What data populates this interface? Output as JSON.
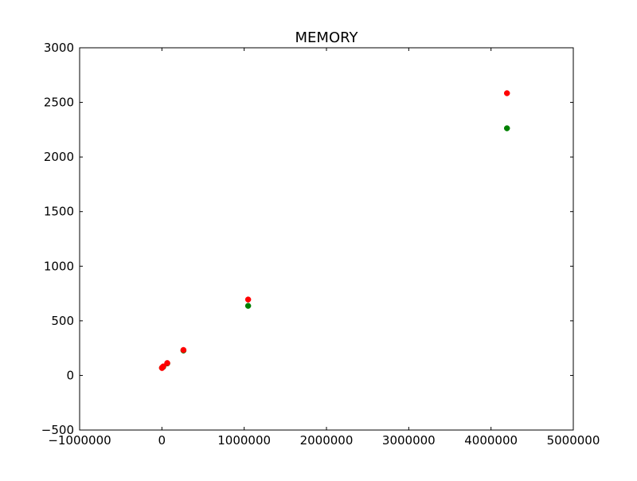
{
  "chart_data": {
    "type": "scatter",
    "title": "MEMORY",
    "xlabel": "",
    "ylabel": "",
    "xlim": [
      -1000000,
      5000000
    ],
    "ylim": [
      -500,
      3000
    ],
    "x_ticks": [
      -1000000,
      0,
      1000000,
      2000000,
      3000000,
      4000000,
      5000000
    ],
    "x_tick_labels": [
      "−1000000",
      "0",
      "1000000",
      "2000000",
      "3000000",
      "4000000",
      "5000000"
    ],
    "y_ticks": [
      -500,
      0,
      500,
      1000,
      1500,
      2000,
      2500,
      3000
    ],
    "y_tick_labels": [
      "−500",
      "0",
      "500",
      "1000",
      "1500",
      "2000",
      "2500",
      "3000"
    ],
    "grid": false,
    "series": [
      {
        "color": "#008000",
        "points": [
          {
            "x": 1000,
            "y": 70
          },
          {
            "x": 4000,
            "y": 72
          },
          {
            "x": 16000,
            "y": 78
          },
          {
            "x": 65000,
            "y": 110
          },
          {
            "x": 262000,
            "y": 228
          },
          {
            "x": 1048000,
            "y": 637
          },
          {
            "x": 4194000,
            "y": 2263
          }
        ]
      },
      {
        "color": "#ff0000",
        "points": [
          {
            "x": 1000,
            "y": 68
          },
          {
            "x": 4000,
            "y": 73
          },
          {
            "x": 16000,
            "y": 82
          },
          {
            "x": 65000,
            "y": 113
          },
          {
            "x": 262000,
            "y": 233
          },
          {
            "x": 1048000,
            "y": 695
          },
          {
            "x": 4194000,
            "y": 2584
          }
        ]
      }
    ]
  }
}
